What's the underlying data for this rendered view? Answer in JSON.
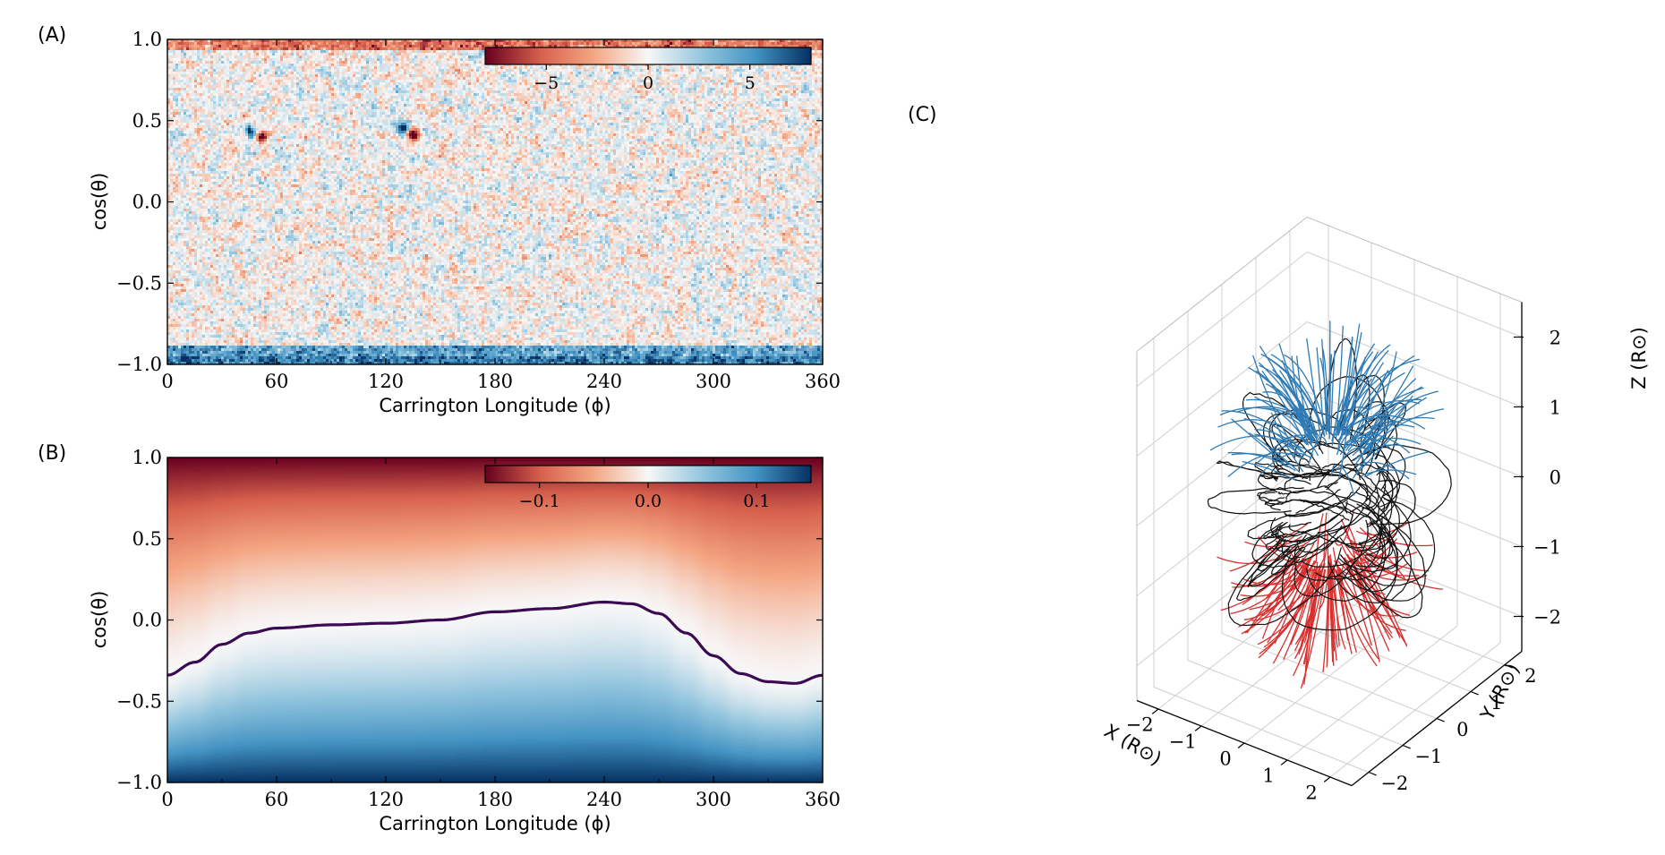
{
  "colors": {
    "neg_dark": "#67001f",
    "neg_mid": "#d6604d",
    "neg_light": "#f4a582",
    "white": "#f7f7f7",
    "pos_light": "#92c5de",
    "pos_mid": "#4393c3",
    "pos_dark": "#053061",
    "pnl_line": "#3b0a52",
    "open_pos": "#2f7bb5",
    "open_neg": "#d7302f",
    "closed": "#111111",
    "grid": "#cfcfcf"
  },
  "chart_data": [
    {
      "panel": "A",
      "label": "(A)",
      "type": "heatmap",
      "xlabel": "Carrington Longitude (ϕ)",
      "ylabel": "cos(θ)",
      "xlim": [
        0,
        360
      ],
      "ylim": [
        -1.0,
        1.0
      ],
      "xticks": [
        "0",
        "60",
        "120",
        "180",
        "240",
        "300",
        "360"
      ],
      "yticks": [
        "−1.0",
        "−0.5",
        "0.0",
        "0.5",
        "1.0"
      ],
      "colorbar": {
        "ticks": [
          "−5",
          "0",
          "5"
        ],
        "range": [
          -8,
          8
        ],
        "placement": "top-right"
      },
      "description_values": {
        "north_polar_band_sign": "negative",
        "south_polar_band_sign": "positive",
        "active_regions": [
          {
            "lon": 50,
            "cos_theta": 0.4,
            "pos": 1,
            "neg": 1
          },
          {
            "lon": 133,
            "cos_theta": 0.42,
            "pos": 1,
            "neg": 1
          }
        ]
      }
    },
    {
      "panel": "B",
      "label": "(B)",
      "type": "heatmap",
      "xlabel": "Carrington Longitude (ϕ)",
      "ylabel": "cos(θ)",
      "xlim": [
        0,
        360
      ],
      "ylim": [
        -1.0,
        1.0
      ],
      "xticks": [
        "0",
        "60",
        "120",
        "180",
        "240",
        "300",
        "360"
      ],
      "yticks": [
        "−1.0",
        "−0.5",
        "0.0",
        "0.5",
        "1.0"
      ],
      "colorbar": {
        "ticks": [
          "−0.1",
          "0.0",
          "0.1"
        ],
        "range": [
          -0.15,
          0.15
        ],
        "placement": "top-right"
      },
      "neutral_line": {
        "x": [
          0,
          15,
          30,
          45,
          60,
          90,
          120,
          150,
          180,
          210,
          240,
          255,
          270,
          285,
          300,
          315,
          330,
          345,
          360
        ],
        "y": [
          -0.34,
          -0.26,
          -0.15,
          -0.08,
          -0.05,
          -0.03,
          -0.02,
          0.0,
          0.05,
          0.07,
          0.11,
          0.1,
          0.04,
          -0.08,
          -0.22,
          -0.33,
          -0.38,
          -0.39,
          -0.34
        ]
      }
    },
    {
      "panel": "C",
      "label": "(C)",
      "type": "scatter",
      "subtype": "3d-field-lines",
      "xlabel": "X (R⊙)",
      "ylabel": "Y (R⊙)",
      "zlabel": "Z (R⊙)",
      "xlim": [
        -2.5,
        2.5
      ],
      "ylim": [
        -2.5,
        2.5
      ],
      "zlim": [
        -2.5,
        2.5
      ],
      "xticks": [
        "−2",
        "−1",
        "0",
        "1",
        "2"
      ],
      "yticks": [
        "−2",
        "−1",
        "0",
        "1",
        "2"
      ],
      "zticks": [
        "−2",
        "−1",
        "0",
        "1",
        "2"
      ],
      "series": [
        {
          "kind": "open-positive",
          "count": 110
        },
        {
          "kind": "open-negative",
          "count": 110
        },
        {
          "kind": "closed",
          "count": 90
        }
      ]
    }
  ]
}
